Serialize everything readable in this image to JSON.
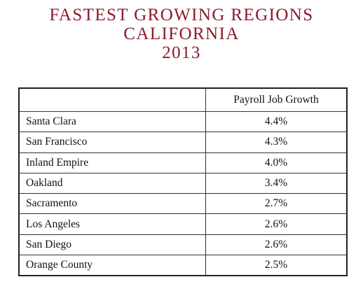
{
  "title": {
    "line1": "FASTEST GROWING REGIONS",
    "line2": "CALIFORNIA",
    "line3": "2013"
  },
  "table": {
    "column_headers": [
      "",
      "Payroll Job Growth"
    ],
    "rows": [
      {
        "region": "Santa Clara",
        "value": "4.4%"
      },
      {
        "region": "San Francisco",
        "value": "4.3%"
      },
      {
        "region": "Inland Empire",
        "value": "4.0%"
      },
      {
        "region": "Oakland",
        "value": "3.4%"
      },
      {
        "region": "Sacramento",
        "value": "2.7%"
      },
      {
        "region": "Los Angeles",
        "value": "2.6%"
      },
      {
        "region": "San Diego",
        "value": "2.6%"
      },
      {
        "region": "Orange County",
        "value": "2.5%"
      }
    ]
  },
  "colors": {
    "title": "#8b1a2b",
    "text": "#111111",
    "border": "#333333"
  },
  "chart_data": {
    "type": "table",
    "title": "FASTEST GROWING REGIONS CALIFORNIA 2013",
    "columns": [
      "",
      "Payroll Job Growth"
    ],
    "categories": [
      "Santa Clara",
      "San Francisco",
      "Inland Empire",
      "Oakland",
      "Sacramento",
      "Los Angeles",
      "San Diego",
      "Orange County"
    ],
    "values": [
      4.4,
      4.3,
      4.0,
      3.4,
      2.7,
      2.6,
      2.6,
      2.5
    ]
  }
}
